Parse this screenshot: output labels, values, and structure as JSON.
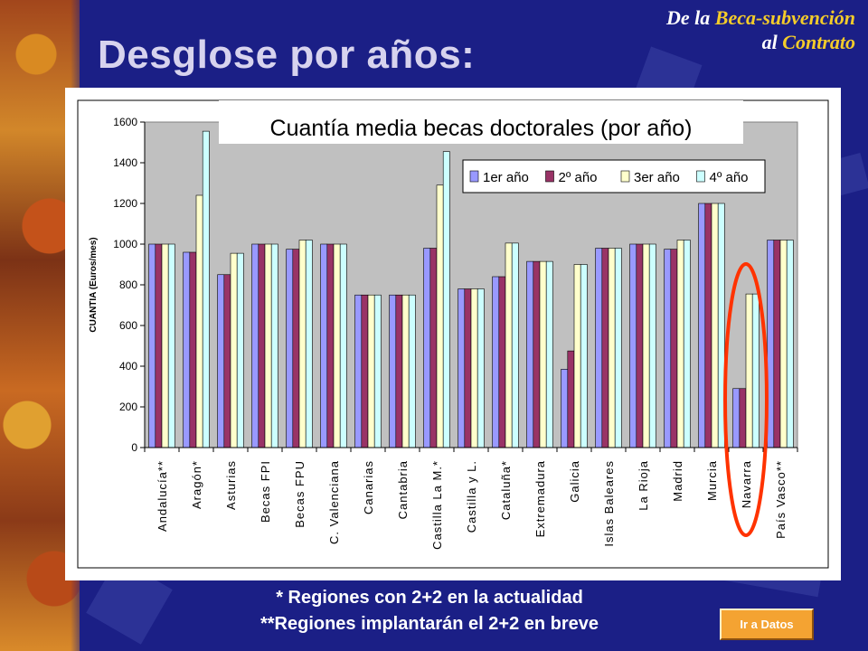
{
  "page": {
    "title": "Desglose por años:",
    "subtitle_line1": [
      "De ",
      "la ",
      "Beca-subvención"
    ],
    "subtitle_line2": [
      "al ",
      "Contrato"
    ],
    "footnote1": "* Regiones con 2+2 en la actualidad",
    "footnote2": "**Regiones implantarán el 2+2 en breve",
    "button_label": "Ir a Datos"
  },
  "colors": {
    "series": [
      "#9999ff",
      "#993366",
      "#ffffcc",
      "#ccffff"
    ],
    "plot_area": "#c0c0c0",
    "highlight_ellipse": "#ff3300"
  },
  "chart_data": {
    "type": "bar",
    "title": "Cuantía media becas doctorales (por año)",
    "ylabel": "CUANTIA (Euros/mes)",
    "xlabel": "",
    "ylim": [
      0,
      1600
    ],
    "yticks": [
      0,
      200,
      400,
      600,
      800,
      1000,
      1200,
      1400,
      1600
    ],
    "grid": false,
    "legend_position": "top-right",
    "highlighted_category": "Navarra",
    "categories": [
      "Andalucía**",
      "Aragón*",
      "Asturias",
      "Becas FPI",
      "Becas FPU",
      "C. Valenciana",
      "Canarias",
      "Cantabria",
      "Castilla La M.*",
      "Castilla y L.",
      "Cataluña*",
      "Extremadura",
      "Galicia",
      "Islas Baleares",
      "La Rioja",
      "Madrid",
      "Murcia",
      "Navarra",
      "País Vasco**"
    ],
    "series": [
      {
        "name": "1er año",
        "values": [
          1000,
          960,
          850,
          1000,
          975,
          1000,
          750,
          750,
          980,
          780,
          840,
          915,
          385,
          980,
          1000,
          975,
          1200,
          290,
          1020
        ]
      },
      {
        "name": "2º año",
        "values": [
          1000,
          960,
          850,
          1000,
          975,
          1000,
          750,
          750,
          980,
          780,
          840,
          915,
          475,
          980,
          1000,
          975,
          1200,
          290,
          1020
        ]
      },
      {
        "name": "3er año",
        "values": [
          1000,
          1240,
          955,
          1000,
          1020,
          1000,
          750,
          750,
          1290,
          780,
          1005,
          915,
          900,
          980,
          1000,
          1020,
          1200,
          755,
          1020
        ]
      },
      {
        "name": "4º año",
        "values": [
          1000,
          1555,
          955,
          1000,
          1020,
          1000,
          750,
          750,
          1455,
          780,
          1005,
          915,
          900,
          980,
          1000,
          1020,
          1200,
          755,
          1020
        ]
      }
    ]
  }
}
